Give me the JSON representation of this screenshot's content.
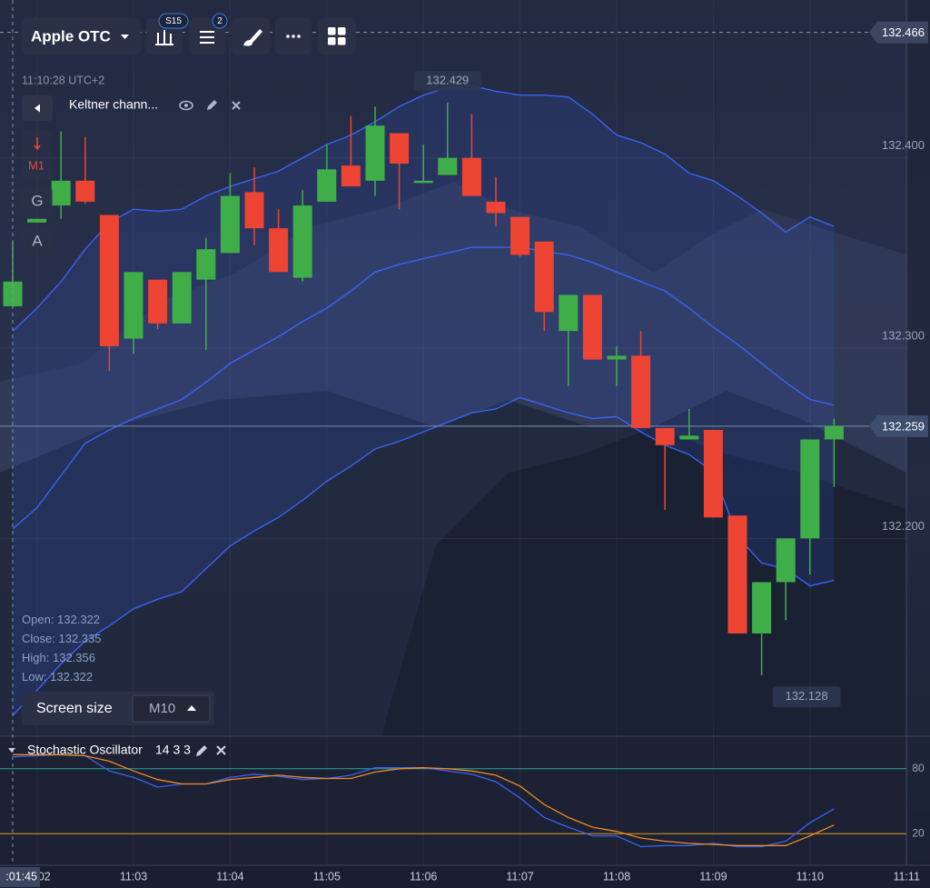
{
  "toolbar": {
    "asset": "Apple OTC",
    "timeframe_badge": "S15",
    "indicator_count": "2"
  },
  "clock": "11:10:28 UTC+2",
  "indicator_row": {
    "label": "Keltner chann..."
  },
  "side_buttons": {
    "timeframe": "M1",
    "g": "G",
    "a": "A"
  },
  "info_panel": [
    "Open:",
    "Close:",
    "High:",
    "Low:"
  ],
  "screen_size": {
    "label": "Screen size",
    "value": "M10"
  },
  "crosshair_time": ":01:45",
  "chart_data": {
    "type": "candlestick",
    "categories": [
      null,
      "11:02",
      null,
      null,
      null,
      "11:03",
      null,
      null,
      null,
      "11:04",
      null,
      null,
      null,
      "11:05",
      null,
      null,
      null,
      "11:06",
      null,
      null,
      null,
      "11:07",
      null,
      null,
      null,
      "11:08",
      null,
      null,
      null,
      "11:09",
      null,
      null,
      null,
      "11:10",
      null,
      null,
      null,
      "11:11"
    ],
    "open": [
      132.322,
      132.366,
      132.375,
      132.388,
      132.37,
      132.305,
      132.336,
      132.313,
      132.336,
      132.35,
      132.382,
      132.363,
      132.337,
      132.377,
      132.396,
      132.388,
      132.413,
      132.387,
      132.391,
      132.4,
      132.377,
      132.369,
      132.356,
      132.309,
      132.328,
      132.294,
      132.296,
      132.258,
      132.252,
      132.257,
      132.212,
      132.15,
      132.177,
      132.2,
      132.252,
      null,
      null,
      null
    ],
    "high": [
      132.356,
      132.368,
      132.414,
      132.411,
      132.37,
      132.34,
      132.336,
      132.34,
      132.358,
      132.392,
      132.395,
      132.373,
      132.383,
      132.407,
      132.422,
      132.427,
      132.413,
      132.407,
      132.429,
      132.423,
      132.39,
      132.369,
      132.356,
      132.328,
      132.328,
      132.301,
      132.309,
      132.258,
      132.268,
      132.257,
      132.212,
      132.177,
      132.2,
      132.252,
      132.263,
      null,
      null,
      null
    ],
    "low": [
      132.322,
      132.366,
      132.368,
      132.376,
      132.288,
      132.297,
      132.31,
      132.313,
      132.299,
      132.35,
      132.354,
      132.34,
      132.335,
      132.377,
      132.385,
      132.38,
      132.373,
      132.387,
      132.391,
      132.38,
      132.364,
      132.348,
      132.309,
      132.28,
      132.294,
      132.28,
      132.258,
      132.215,
      132.252,
      132.211,
      132.15,
      132.128,
      132.157,
      132.181,
      132.227,
      null,
      null,
      null
    ],
    "close": [
      132.335,
      132.368,
      132.388,
      132.377,
      132.301,
      132.34,
      132.313,
      132.34,
      132.352,
      132.38,
      132.363,
      132.34,
      132.375,
      132.394,
      132.385,
      132.417,
      132.397,
      132.388,
      132.4,
      132.38,
      132.371,
      132.349,
      132.319,
      132.328,
      132.294,
      132.296,
      132.258,
      132.249,
      132.254,
      132.211,
      132.15,
      132.177,
      132.2,
      132.252,
      132.259,
      null,
      null,
      null
    ],
    "up_color": "#3fae49",
    "down_color": "#ee4434",
    "keltner": {
      "color": "#3a62f2",
      "upper": [
        132.309,
        132.321,
        132.335,
        132.352,
        132.366,
        132.373,
        132.372,
        132.373,
        132.38,
        132.385,
        132.389,
        132.393,
        132.4,
        132.407,
        132.412,
        132.419,
        132.427,
        132.433,
        132.437,
        132.438,
        132.435,
        132.433,
        132.433,
        132.432,
        132.423,
        132.412,
        132.408,
        132.402,
        132.392,
        132.388,
        132.38,
        132.371,
        132.361,
        132.369,
        132.364,
        null,
        null,
        null
      ],
      "middle": [
        132.205,
        132.216,
        132.233,
        132.25,
        132.257,
        132.263,
        132.268,
        132.273,
        132.282,
        132.292,
        132.299,
        132.306,
        132.314,
        132.321,
        132.33,
        132.34,
        132.344,
        132.347,
        132.35,
        132.353,
        132.353,
        132.353,
        132.351,
        132.349,
        132.345,
        132.34,
        132.335,
        132.33,
        132.321,
        132.311,
        132.302,
        132.292,
        132.282,
        132.273,
        132.27,
        null,
        null,
        null
      ],
      "lower": [
        132.107,
        132.12,
        132.134,
        132.146,
        132.154,
        132.163,
        132.168,
        132.172,
        132.184,
        132.196,
        132.204,
        132.211,
        132.22,
        132.23,
        132.238,
        132.247,
        132.251,
        132.256,
        132.261,
        132.266,
        132.268,
        132.274,
        132.27,
        132.266,
        132.263,
        132.264,
        132.256,
        132.249,
        132.244,
        132.235,
        132.201,
        132.187,
        132.184,
        132.175,
        132.178,
        null,
        null,
        null
      ]
    },
    "ylim": [
      132.096,
      132.483
    ],
    "yticks": [
      {
        "value": 132.4,
        "label": "132.400"
      },
      {
        "value": 132.3,
        "label": "132.300"
      },
      {
        "value": 132.2,
        "label": "132.200"
      }
    ],
    "grid": true,
    "crosshair_price": 132.466,
    "stochastic": {
      "label": "Stochastic Oscillator",
      "params": "14 3 3",
      "k_color": "#3a62f2",
      "d_color": "#f08a24",
      "k": [
        91,
        92,
        93,
        92,
        78,
        72,
        63,
        66,
        66,
        72,
        75,
        73,
        70,
        71,
        74,
        81,
        81,
        81,
        78,
        75,
        68,
        53,
        35,
        26,
        18,
        18,
        8,
        9,
        9,
        11,
        8,
        8,
        13,
        30,
        43,
        null,
        null,
        null
      ],
      "d": [
        93,
        93,
        93,
        92,
        87,
        78,
        70,
        66,
        66,
        70,
        72,
        74,
        72,
        71,
        71,
        77,
        80,
        81,
        80,
        78,
        74,
        64,
        47,
        35,
        26,
        22,
        16,
        13,
        11,
        10,
        9,
        9,
        9,
        18,
        28,
        null,
        null,
        null
      ],
      "ylim": [
        0,
        100
      ],
      "yticks": [
        80,
        20
      ],
      "tick_colors": [
        "#26a69a",
        "#e0a020"
      ]
    }
  }
}
